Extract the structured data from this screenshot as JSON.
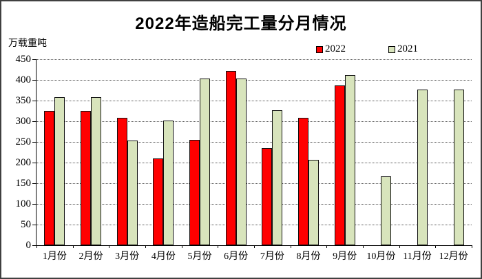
{
  "header": {
    "title": "2022年造船完工量分月情况"
  },
  "axes": {
    "unit_label": "万载重吨"
  },
  "legend": {
    "items": [
      {
        "label": "2022",
        "color": "#FF0000"
      },
      {
        "label": "2021",
        "color": "#D8E4BC"
      }
    ]
  },
  "chart_data": {
    "type": "bar",
    "title": "2022年造船完工量分月情况",
    "ylabel": "万载重吨",
    "categories": [
      "1月份",
      "2月份",
      "3月份",
      "4月份",
      "5月份",
      "6月份",
      "7月份",
      "8月份",
      "9月份",
      "10月份",
      "11月份",
      "12月份"
    ],
    "series": [
      {
        "name": "2022",
        "color": "#FF0000",
        "values": [
          325,
          325,
          308,
          210,
          255,
          421,
          235,
          309,
          386,
          null,
          null,
          null
        ]
      },
      {
        "name": "2021",
        "color": "#D8E4BC",
        "values": [
          358,
          358,
          254,
          301,
          403,
          403,
          326,
          207,
          412,
          167,
          377,
          377
        ]
      }
    ],
    "ylim": [
      0,
      450
    ],
    "ytick_step": 50,
    "grid": true,
    "legend_position": "top-right",
    "bar_outline_color": "#111111"
  }
}
